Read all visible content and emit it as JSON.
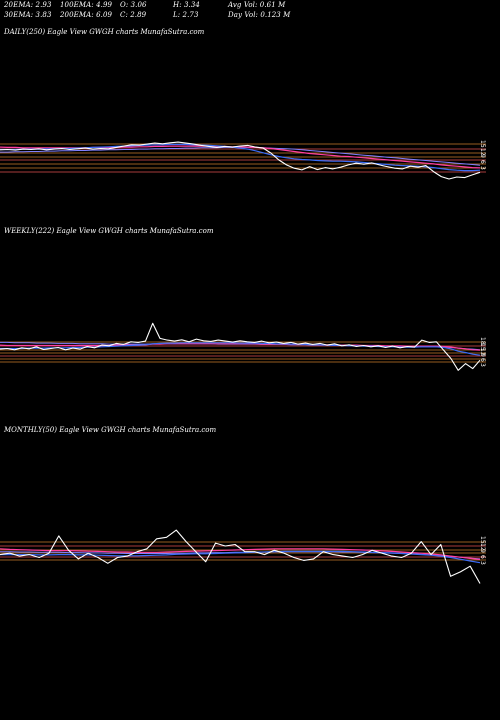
{
  "header": {
    "ema20": "20EMA: 2.93",
    "ema100": "100EMA: 4.99",
    "open": "O: 3.06",
    "high": "H: 3.34",
    "avg_vol": "Avg Vol: 0.61 M",
    "ema30": "30EMA: 3.83",
    "ema200": "200EMA: 6.09",
    "close": "C: 2.89",
    "low": "L: 2.73",
    "day_vol": "Day Vol: 0.123 M"
  },
  "colors": {
    "background": "#000000",
    "price": "#ffffff",
    "ema_short": "#3b6cf5",
    "ema_mid": "#ff3fa0",
    "ema_long": "#8080ff",
    "level_lines": "#c87a2a",
    "level_lines_alt": "#e05050"
  },
  "chart_data": [
    {
      "type": "line",
      "title": "DAILY(250) Eagle  View  GWGH charts MunafaSutra.com",
      "y_tick_labels": [
        "15",
        "12",
        "9",
        "6",
        "3"
      ],
      "series": [
        {
          "role": "price",
          "values": [
            15.5,
            15.6,
            15.4,
            15.7,
            15.6,
            15.8,
            15.5,
            15.7,
            15.9,
            15.6,
            15.8,
            16.0,
            15.7,
            15.9,
            15.8,
            16.2,
            16.6,
            17.0,
            16.9,
            17.2,
            17.5,
            17.3,
            17.6,
            17.8,
            17.5,
            17.2,
            16.8,
            16.5,
            16.2,
            16.5,
            16.3,
            16.6,
            16.8,
            16.3,
            16.0,
            14.5,
            12.5,
            11.0,
            10.0,
            9.5,
            10.5,
            9.6,
            10.2,
            9.8,
            10.3,
            11.0,
            11.5,
            11.2,
            11.6,
            11.0,
            10.5,
            10.0,
            9.8,
            10.6,
            10.3,
            10.8,
            9.0,
            7.5,
            6.8,
            7.4,
            7.2,
            8.0,
            8.8
          ]
        },
        {
          "role": "ema-short",
          "values": [
            15.6,
            15.6,
            15.6,
            15.7,
            15.7,
            15.7,
            15.8,
            15.8,
            15.9,
            15.9,
            16.0,
            16.1,
            16.2,
            16.3,
            16.4,
            16.5,
            16.6,
            16.7,
            16.8,
            16.9,
            17.0,
            17.0,
            17.1,
            17.1,
            17.1,
            17.0,
            16.9,
            16.8,
            16.7,
            16.5,
            16.3,
            16.0,
            15.7,
            15.2,
            14.6,
            14.0,
            13.5,
            13.1,
            12.8,
            12.6,
            12.5,
            12.3,
            12.2,
            12.1,
            12.1,
            12.0,
            11.9,
            11.7,
            11.5,
            11.3,
            11.1,
            10.9,
            10.8,
            10.7,
            10.6,
            10.4,
            10.2,
            9.9,
            9.6,
            9.4,
            9.3,
            9.3,
            9.4
          ]
        },
        {
          "role": "ema-mid",
          "values": [
            16.3,
            16.2,
            16.2,
            16.1,
            16.1,
            16.1,
            16.1,
            16.1,
            16.1,
            16.1,
            16.1,
            16.1,
            16.2,
            16.2,
            16.2,
            16.2,
            16.3,
            16.3,
            16.4,
            16.4,
            16.5,
            16.5,
            16.6,
            16.6,
            16.6,
            16.6,
            16.6,
            16.6,
            16.5,
            16.5,
            16.4,
            16.4,
            16.3,
            16.2,
            16.1,
            15.9,
            15.6,
            15.3,
            15.0,
            14.7,
            14.4,
            14.2,
            14.0,
            13.8,
            13.6,
            13.5,
            13.3,
            13.1,
            12.9,
            12.7,
            12.5,
            12.3,
            12.1,
            11.9,
            11.7,
            11.5,
            11.3,
            11.0,
            10.8,
            10.6,
            10.4,
            10.2,
            10.1
          ]
        },
        {
          "role": "ema-long",
          "values": [
            14.8,
            14.8,
            14.9,
            14.9,
            15.0,
            15.0,
            15.1,
            15.1,
            15.2,
            15.2,
            15.3,
            15.3,
            15.4,
            15.4,
            15.5,
            15.5,
            15.6,
            15.6,
            15.7,
            15.7,
            15.8,
            15.8,
            15.9,
            15.9,
            16.0,
            16.0,
            16.1,
            16.1,
            16.1,
            16.2,
            16.2,
            16.2,
            16.2,
            16.2,
            16.1,
            16.0,
            15.9,
            15.8,
            15.7,
            15.5,
            15.3,
            15.1,
            14.9,
            14.7,
            14.5,
            14.3,
            14.1,
            13.9,
            13.7,
            13.5,
            13.3,
            13.1,
            12.9,
            12.7,
            12.5,
            12.3,
            12.1,
            11.9,
            11.7,
            11.5,
            11.3,
            11.1,
            10.9
          ]
        }
      ]
    },
    {
      "type": "line",
      "title": "WEEKLY(222) Eagle  View  GWGH charts MunafaSutra.com",
      "y_tick_labels": [
        "18",
        "15",
        "12",
        "9",
        "6",
        "3"
      ],
      "series": [
        {
          "role": "price",
          "values": [
            14.8,
            15.0,
            14.6,
            15.2,
            14.9,
            15.5,
            14.7,
            15.0,
            15.3,
            14.6,
            15.1,
            14.8,
            15.6,
            15.2,
            16.0,
            15.8,
            16.5,
            16.2,
            17.0,
            16.8,
            17.2,
            22.5,
            18.0,
            17.5,
            17.2,
            17.6,
            17.0,
            17.8,
            17.3,
            17.1,
            17.5,
            17.2,
            16.9,
            17.3,
            17.0,
            16.8,
            17.2,
            16.7,
            16.9,
            16.5,
            16.8,
            16.3,
            16.6,
            16.2,
            16.5,
            16.0,
            16.4,
            15.8,
            16.1,
            15.6,
            15.9,
            15.5,
            15.8,
            15.3,
            15.7,
            15.2,
            15.6,
            15.4,
            17.5,
            16.8,
            17.0,
            14.5,
            12.0,
            8.5,
            10.5,
            9.0,
            11.5
          ]
        },
        {
          "role": "ema-short",
          "values": [
            15.0,
            15.0,
            15.0,
            15.0,
            15.1,
            15.1,
            15.1,
            15.2,
            15.2,
            15.2,
            15.3,
            15.3,
            15.4,
            15.4,
            15.5,
            15.6,
            15.7,
            15.8,
            15.9,
            16.0,
            16.1,
            16.4,
            16.5,
            16.6,
            16.6,
            16.7,
            16.7,
            16.7,
            16.7,
            16.7,
            16.7,
            16.7,
            16.7,
            16.6,
            16.6,
            16.6,
            16.5,
            16.5,
            16.4,
            16.4,
            16.3,
            16.3,
            16.2,
            16.1,
            16.1,
            16.0,
            16.0,
            15.9,
            15.8,
            15.8,
            15.7,
            15.7,
            15.6,
            15.5,
            15.5,
            15.4,
            15.4,
            15.4,
            15.5,
            15.5,
            15.5,
            15.3,
            14.9,
            14.2,
            13.8,
            13.3,
            13.0
          ]
        },
        {
          "role": "ema-mid",
          "values": [
            16.0,
            15.9,
            15.9,
            15.9,
            15.9,
            15.9,
            15.9,
            15.9,
            15.9,
            15.9,
            15.9,
            15.9,
            15.9,
            15.9,
            15.9,
            15.9,
            16.0,
            16.0,
            16.0,
            16.0,
            16.1,
            16.3,
            16.3,
            16.4,
            16.4,
            16.4,
            16.4,
            16.4,
            16.4,
            16.4,
            16.4,
            16.4,
            16.4,
            16.4,
            16.4,
            16.4,
            16.3,
            16.3,
            16.3,
            16.3,
            16.2,
            16.2,
            16.2,
            16.2,
            16.1,
            16.1,
            16.1,
            16.0,
            16.0,
            16.0,
            15.9,
            15.9,
            15.9,
            15.8,
            15.8,
            15.8,
            15.7,
            15.7,
            15.7,
            15.7,
            15.7,
            15.6,
            15.4,
            15.1,
            14.9,
            14.6,
            14.5
          ]
        },
        {
          "role": "ema-long",
          "values": [
            16.8,
            16.8,
            16.7,
            16.7,
            16.7,
            16.6,
            16.6,
            16.6,
            16.5,
            16.5,
            16.5,
            16.4,
            16.4,
            16.4,
            16.4,
            16.3,
            16.3,
            16.3,
            16.3,
            16.3,
            16.3,
            16.4,
            16.4,
            16.4,
            16.4,
            16.4,
            16.4,
            16.4,
            16.4,
            16.4,
            16.3,
            16.3,
            16.3,
            16.3,
            16.3,
            16.3,
            16.2,
            16.2,
            16.2,
            16.2,
            16.1,
            16.1,
            16.1,
            16.0,
            16.0,
            16.0,
            15.9,
            15.9,
            15.9,
            15.8,
            15.8,
            15.8,
            15.7,
            15.7,
            15.7,
            15.6,
            15.6,
            15.6,
            15.5,
            15.5,
            15.5,
            15.4,
            15.3,
            15.1,
            14.9,
            14.8,
            14.6
          ]
        }
      ]
    },
    {
      "type": "line",
      "title": "MONTHLY(50) Eagle  View  GWGH charts MunafaSutra.com",
      "y_tick_labels": [
        "15",
        "12",
        "9",
        "6",
        "3"
      ],
      "series": [
        {
          "role": "price",
          "values": [
            16.0,
            16.5,
            15.5,
            16.0,
            15.0,
            16.5,
            22.5,
            17.5,
            14.5,
            16.5,
            15.0,
            13.0,
            15.0,
            15.5,
            17.0,
            18.0,
            21.5,
            22.0,
            24.5,
            20.5,
            17.0,
            13.5,
            20.0,
            19.0,
            19.5,
            17.0,
            17.0,
            16.0,
            17.5,
            16.5,
            15.0,
            14.0,
            14.5,
            17.0,
            16.0,
            15.5,
            15.0,
            16.0,
            17.5,
            16.5,
            15.5,
            15.0,
            16.5,
            20.5,
            16.0,
            19.5,
            8.5,
            10.0,
            12.0,
            6.0
          ]
        },
        {
          "role": "ema-short",
          "values": [
            16.0,
            16.0,
            16.0,
            16.0,
            15.9,
            15.9,
            16.0,
            16.0,
            15.9,
            15.9,
            15.8,
            15.7,
            15.6,
            15.6,
            15.6,
            15.7,
            15.8,
            15.9,
            16.1,
            16.2,
            16.3,
            16.3,
            16.4,
            16.5,
            16.6,
            16.7,
            16.8,
            16.9,
            17.0,
            17.1,
            17.1,
            17.1,
            17.1,
            17.1,
            17.1,
            17.1,
            17.0,
            16.9,
            16.8,
            16.7,
            16.6,
            16.4,
            16.2,
            16.0,
            15.8,
            15.5,
            15.0,
            14.4,
            13.8,
            13.2
          ]
        },
        {
          "role": "ema-mid",
          "values": [
            18.0,
            17.8,
            17.7,
            17.6,
            17.5,
            17.4,
            17.4,
            17.4,
            17.3,
            17.2,
            17.1,
            17.0,
            16.9,
            16.9,
            16.8,
            16.8,
            16.8,
            16.9,
            17.0,
            17.1,
            17.2,
            17.3,
            17.4,
            17.5,
            17.6,
            17.7,
            17.8,
            17.9,
            18.0,
            18.0,
            18.0,
            18.0,
            18.0,
            18.0,
            17.9,
            17.8,
            17.7,
            17.6,
            17.5,
            17.3,
            17.1,
            16.9,
            16.7,
            16.5,
            16.2,
            15.9,
            15.5,
            15.1,
            14.7,
            14.3
          ]
        },
        {
          "role": "ema-long",
          "values": [
            17.0,
            17.0,
            16.9,
            16.9,
            16.8,
            16.8,
            16.8,
            16.7,
            16.7,
            16.6,
            16.6,
            16.5,
            16.5,
            16.4,
            16.4,
            16.4,
            16.4,
            16.4,
            16.5,
            16.5,
            16.6,
            16.6,
            16.7,
            16.7,
            16.8,
            16.8,
            16.9,
            16.9,
            17.0,
            17.0,
            17.0,
            17.0,
            17.0,
            17.0,
            17.0,
            16.9,
            16.9,
            16.8,
            16.7,
            16.6,
            16.5,
            16.4,
            16.3,
            16.1,
            15.9,
            15.7,
            15.4,
            15.1,
            14.8,
            14.5
          ]
        }
      ]
    }
  ]
}
